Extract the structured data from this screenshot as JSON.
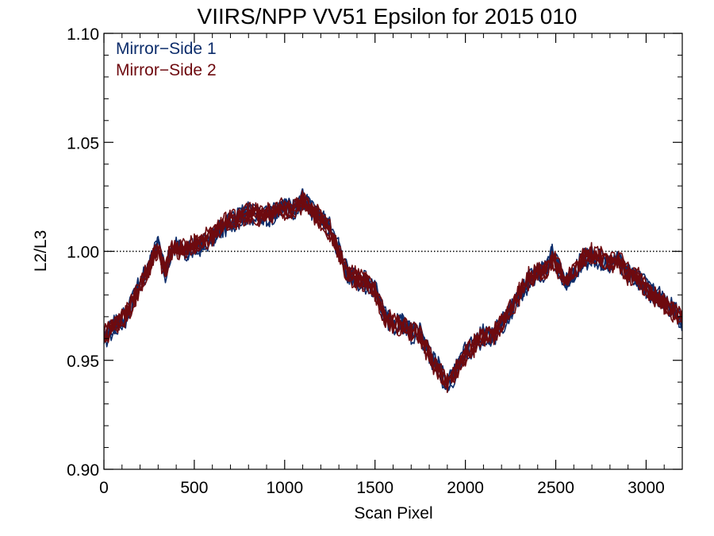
{
  "chart_data": {
    "type": "line",
    "title": "VIIRS/NPP VV51 Epsilon for 2015 010",
    "xlabel": "Scan Pixel",
    "ylabel": "L2/L3",
    "xlim": [
      0,
      3200
    ],
    "ylim": [
      0.9,
      1.1
    ],
    "xticks": [
      0,
      500,
      1000,
      1500,
      2000,
      2500,
      3000
    ],
    "xtick_labels": [
      "0",
      "500",
      "1000",
      "1500",
      "2000",
      "2500",
      "3000"
    ],
    "yticks": [
      0.9,
      0.95,
      1.0,
      1.05,
      1.1
    ],
    "ytick_labels": [
      "0.90",
      "0.95",
      "1.00",
      "1.05",
      "1.10"
    ],
    "reference_line": {
      "y": 1.0,
      "style": "dotted"
    },
    "grid": false,
    "legend_position": "top-left",
    "series": [
      {
        "name": "Mirror−Side 1",
        "color": "#0d2d6b",
        "x": [
          0,
          60,
          120,
          180,
          240,
          280,
          300,
          320,
          340,
          360,
          400,
          450,
          500,
          550,
          600,
          650,
          700,
          750,
          800,
          850,
          900,
          950,
          1000,
          1050,
          1100,
          1150,
          1200,
          1250,
          1300,
          1350,
          1400,
          1450,
          1500,
          1550,
          1600,
          1650,
          1700,
          1750,
          1800,
          1850,
          1900,
          1950,
          2000,
          2050,
          2100,
          2150,
          2200,
          2250,
          2300,
          2350,
          2400,
          2450,
          2480,
          2520,
          2560,
          2600,
          2650,
          2700,
          2750,
          2800,
          2850,
          2900,
          2950,
          3000,
          3050,
          3100,
          3150,
          3200
        ],
        "y": [
          0.96,
          0.966,
          0.97,
          0.982,
          0.992,
          1.0,
          1.004,
          0.996,
          0.99,
          0.998,
          1.003,
          1.0,
          1.002,
          1.004,
          1.007,
          1.011,
          1.014,
          1.016,
          1.018,
          1.017,
          1.016,
          1.019,
          1.021,
          1.019,
          1.024,
          1.02,
          1.016,
          1.011,
          1.001,
          0.99,
          0.987,
          0.986,
          0.983,
          0.972,
          0.966,
          0.968,
          0.963,
          0.963,
          0.953,
          0.947,
          0.938,
          0.946,
          0.954,
          0.958,
          0.962,
          0.961,
          0.967,
          0.973,
          0.98,
          0.987,
          0.991,
          0.992,
          0.999,
          0.993,
          0.986,
          0.99,
          0.996,
          0.998,
          0.997,
          0.994,
          0.997,
          0.99,
          0.988,
          0.984,
          0.98,
          0.978,
          0.974,
          0.968
        ]
      },
      {
        "name": "Mirror−Side 2",
        "color": "#6e0a0f",
        "x": [
          0,
          60,
          120,
          180,
          240,
          280,
          300,
          320,
          340,
          360,
          400,
          450,
          500,
          550,
          600,
          650,
          700,
          750,
          800,
          850,
          900,
          950,
          1000,
          1050,
          1100,
          1150,
          1200,
          1250,
          1300,
          1350,
          1400,
          1450,
          1500,
          1550,
          1600,
          1650,
          1700,
          1750,
          1800,
          1850,
          1900,
          1950,
          2000,
          2050,
          2100,
          2150,
          2200,
          2250,
          2300,
          2350,
          2400,
          2450,
          2480,
          2520,
          2560,
          2600,
          2650,
          2700,
          2750,
          2800,
          2850,
          2900,
          2950,
          3000,
          3050,
          3100,
          3150,
          3200
        ],
        "y": [
          0.961,
          0.967,
          0.971,
          0.981,
          0.991,
          0.999,
          1.002,
          0.995,
          0.991,
          0.999,
          1.002,
          1.001,
          1.003,
          1.005,
          1.008,
          1.012,
          1.014,
          1.016,
          1.018,
          1.017,
          1.017,
          1.019,
          1.02,
          1.02,
          1.023,
          1.019,
          1.015,
          1.01,
          1.0,
          0.99,
          0.988,
          0.987,
          0.982,
          0.971,
          0.967,
          0.967,
          0.964,
          0.962,
          0.952,
          0.946,
          0.94,
          0.946,
          0.953,
          0.957,
          0.962,
          0.962,
          0.968,
          0.974,
          0.981,
          0.988,
          0.991,
          0.993,
          0.997,
          0.992,
          0.987,
          0.991,
          0.997,
          0.999,
          0.998,
          0.995,
          0.996,
          0.99,
          0.989,
          0.983,
          0.979,
          0.977,
          0.973,
          0.969
        ]
      }
    ]
  }
}
